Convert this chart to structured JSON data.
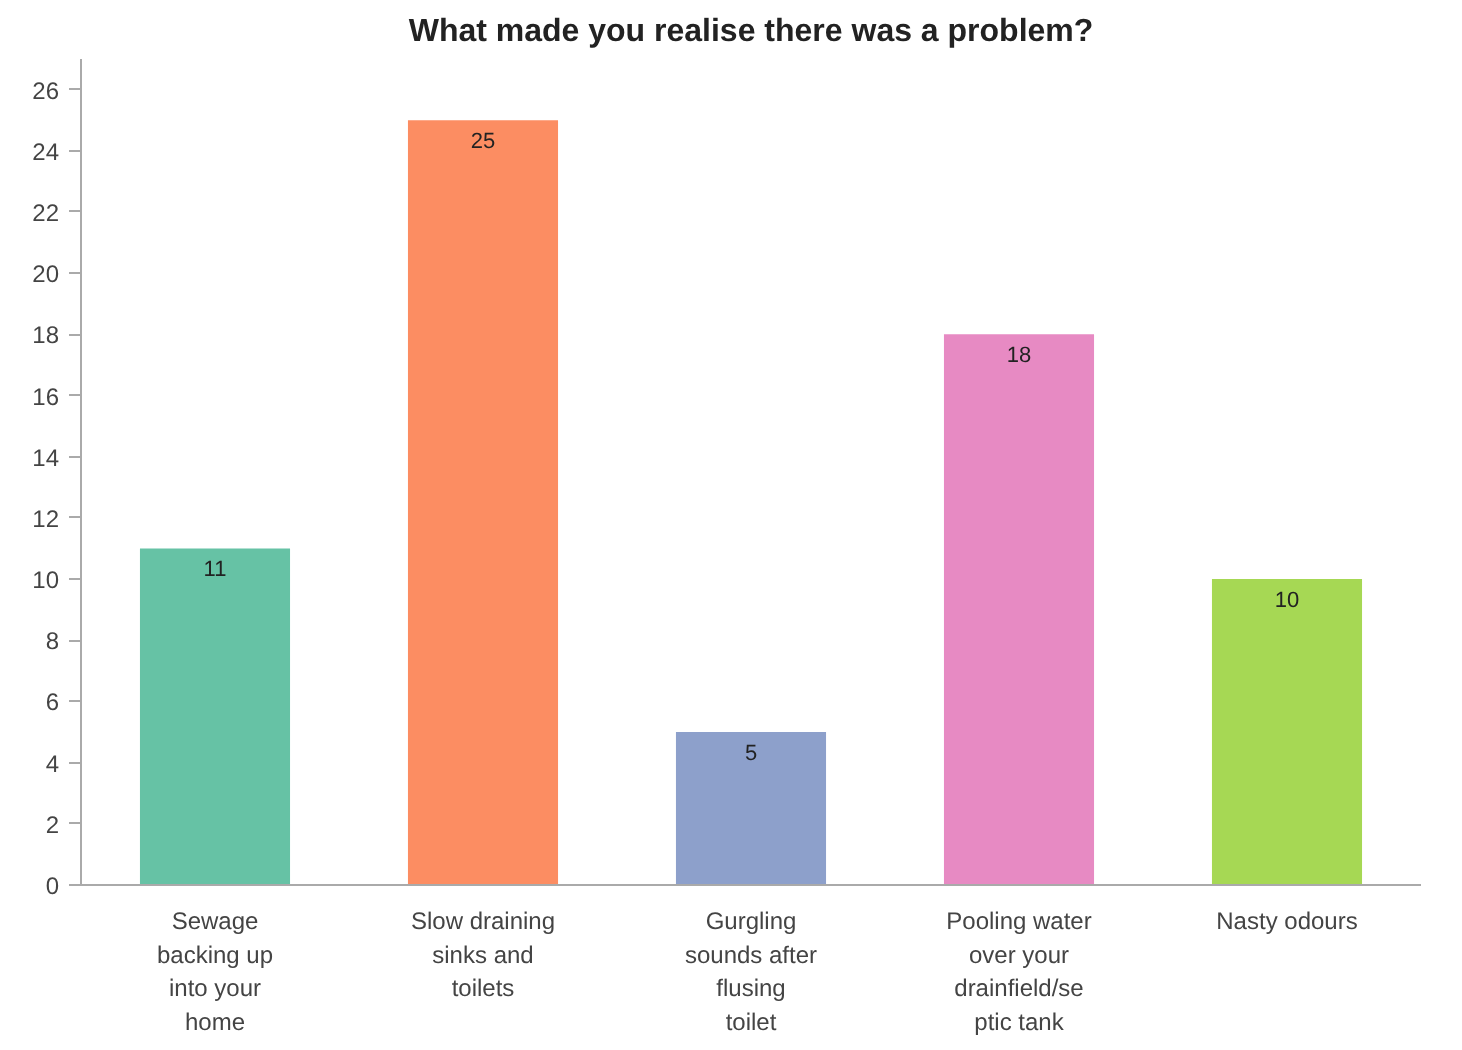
{
  "chart_data": {
    "type": "bar",
    "title": "What made you realise there was a problem?",
    "categories": [
      "Sewage\nbacking up\ninto your\nhome",
      "Slow draining\nsinks and\ntoilets",
      "Gurgling\nsounds after\nflusing\ntoilet",
      "Pooling water\nover your\ndrainfield/se\nptic tank",
      "Nasty odours"
    ],
    "values": [
      11,
      25,
      5,
      18,
      10
    ],
    "colors": [
      "#66c2a5",
      "#fc8d62",
      "#8da0cb",
      "#e78ac3",
      "#a6d854"
    ],
    "ylim": [
      0,
      27
    ],
    "yticks": [
      0,
      2,
      4,
      6,
      8,
      10,
      12,
      14,
      16,
      18,
      20,
      22,
      24,
      26
    ],
    "data_labels": true,
    "grid": false
  }
}
